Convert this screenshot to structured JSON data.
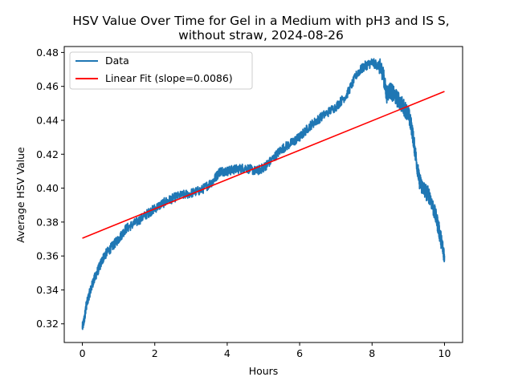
{
  "chart_data": {
    "type": "line",
    "title_lines": [
      "HSV Value Over Time for Gel in a Medium with pH3 and IS S,",
      "without straw, 2024-08-26"
    ],
    "xlabel": "Hours",
    "ylabel": "Average HSV Value",
    "xlim": [
      -0.5,
      10.5
    ],
    "ylim": [
      0.309,
      0.4835
    ],
    "xticks": [
      0,
      2,
      4,
      6,
      8,
      10
    ],
    "xtick_labels": [
      "0",
      "2",
      "4",
      "6",
      "8",
      "10"
    ],
    "yticks": [
      0.32,
      0.34,
      0.36,
      0.38,
      0.4,
      0.42,
      0.44,
      0.46,
      0.48
    ],
    "ytick_labels": [
      "0.32",
      "0.34",
      "0.36",
      "0.38",
      "0.40",
      "0.42",
      "0.44",
      "0.46",
      "0.48"
    ],
    "grid": false,
    "legend_position": "upper-left",
    "series": [
      {
        "name": "Data",
        "color": "#1f77b4",
        "x": [
          0,
          0.05,
          0.1,
          0.2,
          0.3,
          0.4,
          0.5,
          0.6,
          0.8,
          1.0,
          1.2,
          1.5,
          1.8,
          2.0,
          2.3,
          2.6,
          3.0,
          3.3,
          3.6,
          3.8,
          4.0,
          4.2,
          4.5,
          4.8,
          5.0,
          5.2,
          5.5,
          5.8,
          6.0,
          6.3,
          6.6,
          7.0,
          7.3,
          7.6,
          7.8,
          8.0,
          8.2,
          8.3,
          8.4,
          8.5,
          8.6,
          8.8,
          9.0,
          9.1,
          9.2,
          9.3,
          9.4,
          9.6,
          9.8,
          9.9,
          10.0
        ],
        "y": [
          0.318,
          0.322,
          0.33,
          0.338,
          0.345,
          0.35,
          0.355,
          0.36,
          0.365,
          0.37,
          0.376,
          0.38,
          0.385,
          0.388,
          0.392,
          0.395,
          0.397,
          0.399,
          0.404,
          0.41,
          0.41,
          0.411,
          0.412,
          0.41,
          0.412,
          0.416,
          0.423,
          0.427,
          0.43,
          0.437,
          0.442,
          0.448,
          0.455,
          0.468,
          0.472,
          0.474,
          0.472,
          0.468,
          0.455,
          0.458,
          0.455,
          0.45,
          0.444,
          0.435,
          0.42,
          0.405,
          0.4,
          0.395,
          0.38,
          0.37,
          0.36
        ]
      },
      {
        "name": "Linear Fit (slope=0.0086)",
        "color": "#ff0000",
        "x": [
          0,
          10
        ],
        "y": [
          0.3705,
          0.457
        ]
      }
    ]
  }
}
